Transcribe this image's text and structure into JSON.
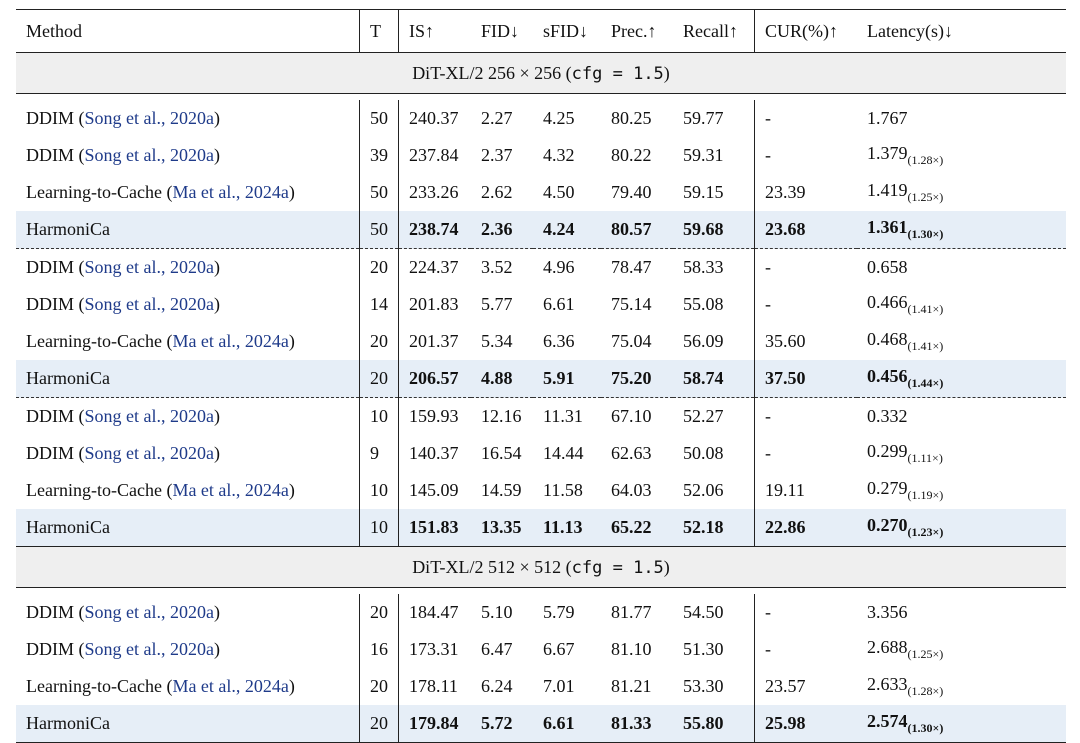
{
  "header": {
    "method": "Method",
    "t": "T",
    "is": "IS↑",
    "fid": "FID↓",
    "sfid": "sFID↓",
    "prec": "Prec.↑",
    "recall": "Recall↑",
    "cur": "CUR(%)↑",
    "latency": "Latency(s)↓"
  },
  "sections": [
    {
      "title_prefix": "DiT-XL/2 256 × 256 (",
      "title_code": "cfg = 1.5",
      "title_suffix": ")",
      "rows": [
        {
          "name": "DDIM",
          "cite_pre": " (",
          "cite": "Song et al., 2020a",
          "cite_post": ")",
          "t": "50",
          "is": "240.37",
          "fid": "2.27",
          "sfid": "4.25",
          "prec": "80.25",
          "recall": "59.77",
          "cur": "-",
          "lat": "1.767",
          "speed": ""
        },
        {
          "name": "DDIM",
          "cite_pre": " (",
          "cite": "Song et al., 2020a",
          "cite_post": ")",
          "t": "39",
          "is": "237.84",
          "fid": "2.37",
          "sfid": "4.32",
          "prec": "80.22",
          "recall": "59.31",
          "cur": "-",
          "lat": "1.379",
          "speed": "(1.28×)"
        },
        {
          "name": "Learning-to-Cache",
          "cite_pre": " (",
          "cite": "Ma et al., 2024a",
          "cite_post": ")",
          "t": "50",
          "is": "233.26",
          "fid": "2.62",
          "sfid": "4.50",
          "prec": "79.40",
          "recall": "59.15",
          "cur": "23.39",
          "lat": "1.419",
          "speed": "(1.25×)"
        },
        {
          "name": "HarmoniCa",
          "cite_pre": "",
          "cite": "",
          "cite_post": "",
          "t": "50",
          "is": "238.74",
          "fid": "2.36",
          "sfid": "4.24",
          "prec": "80.57",
          "recall": "59.68",
          "cur": "23.68",
          "lat": "1.361",
          "speed": "(1.30×)"
        },
        {
          "name": "DDIM",
          "cite_pre": " (",
          "cite": "Song et al., 2020a",
          "cite_post": ")",
          "t": "20",
          "is": "224.37",
          "fid": "3.52",
          "sfid": "4.96",
          "prec": "78.47",
          "recall": "58.33",
          "cur": "-",
          "lat": "0.658",
          "speed": ""
        },
        {
          "name": "DDIM",
          "cite_pre": " (",
          "cite": "Song et al., 2020a",
          "cite_post": ")",
          "t": "14",
          "is": "201.83",
          "fid": "5.77",
          "sfid": "6.61",
          "prec": "75.14",
          "recall": "55.08",
          "cur": "-",
          "lat": "0.466",
          "speed": "(1.41×)"
        },
        {
          "name": "Learning-to-Cache",
          "cite_pre": " (",
          "cite": "Ma et al., 2024a",
          "cite_post": ")",
          "t": "20",
          "is": "201.37",
          "fid": "5.34",
          "sfid": "6.36",
          "prec": "75.04",
          "recall": "56.09",
          "cur": "35.60",
          "lat": "0.468",
          "speed": "(1.41×)"
        },
        {
          "name": "HarmoniCa",
          "cite_pre": "",
          "cite": "",
          "cite_post": "",
          "t": "20",
          "is": "206.57",
          "fid": "4.88",
          "sfid": "5.91",
          "prec": "75.20",
          "recall": "58.74",
          "cur": "37.50",
          "lat": "0.456",
          "speed": "(1.44×)"
        },
        {
          "name": "DDIM",
          "cite_pre": " (",
          "cite": "Song et al., 2020a",
          "cite_post": ")",
          "t": "10",
          "is": "159.93",
          "fid": "12.16",
          "sfid": "11.31",
          "prec": "67.10",
          "recall": "52.27",
          "cur": "-",
          "lat": "0.332",
          "speed": ""
        },
        {
          "name": "DDIM",
          "cite_pre": " (",
          "cite": "Song et al., 2020a",
          "cite_post": ")",
          "t": "9",
          "is": "140.37",
          "fid": "16.54",
          "sfid": "14.44",
          "prec": "62.63",
          "recall": "50.08",
          "cur": "-",
          "lat": "0.299",
          "speed": "(1.11×)"
        },
        {
          "name": "Learning-to-Cache",
          "cite_pre": " (",
          "cite": "Ma et al., 2024a",
          "cite_post": ")",
          "t": "10",
          "is": "145.09",
          "fid": "14.59",
          "sfid": "11.58",
          "prec": "64.03",
          "recall": "52.06",
          "cur": "19.11",
          "lat": "0.279",
          "speed": "(1.19×)"
        },
        {
          "name": "HarmoniCa",
          "cite_pre": "",
          "cite": "",
          "cite_post": "",
          "t": "10",
          "is": "151.83",
          "fid": "13.35",
          "sfid": "11.13",
          "prec": "65.22",
          "recall": "52.18",
          "cur": "22.86",
          "lat": "0.270",
          "speed": "(1.23×)"
        }
      ]
    },
    {
      "title_prefix": "DiT-XL/2 512 × 512 (",
      "title_code": "cfg = 1.5",
      "title_suffix": ")",
      "rows": [
        {
          "name": "DDIM",
          "cite_pre": " (",
          "cite": "Song et al., 2020a",
          "cite_post": ")",
          "t": "20",
          "is": "184.47",
          "fid": "5.10",
          "sfid": "5.79",
          "prec": "81.77",
          "recall": "54.50",
          "cur": "-",
          "lat": "3.356",
          "speed": ""
        },
        {
          "name": "DDIM",
          "cite_pre": " (",
          "cite": "Song et al., 2020a",
          "cite_post": ")",
          "t": "16",
          "is": "173.31",
          "fid": "6.47",
          "sfid": "6.67",
          "prec": "81.10",
          "recall": "51.30",
          "cur": "-",
          "lat": "2.688",
          "speed": "(1.25×)"
        },
        {
          "name": "Learning-to-Cache",
          "cite_pre": " (",
          "cite": "Ma et al., 2024a",
          "cite_post": ")",
          "t": "20",
          "is": "178.11",
          "fid": "6.24",
          "sfid": "7.01",
          "prec": "81.21",
          "recall": "53.30",
          "cur": "23.57",
          "lat": "2.633",
          "speed": "(1.28×)"
        },
        {
          "name": "HarmoniCa",
          "cite_pre": "",
          "cite": "",
          "cite_post": "",
          "t": "20",
          "is": "179.84",
          "fid": "5.72",
          "sfid": "6.61",
          "prec": "81.33",
          "recall": "55.80",
          "cur": "25.98",
          "lat": "2.574",
          "speed": "(1.30×)"
        }
      ]
    }
  ]
}
